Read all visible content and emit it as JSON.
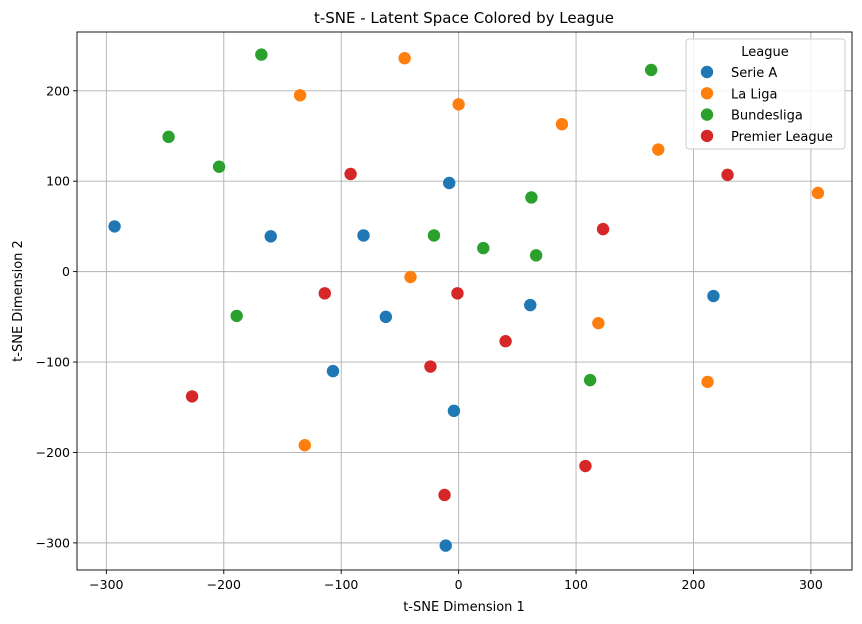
{
  "chart_data": {
    "type": "scatter",
    "title": "t-SNE - Latent Space Colored by League",
    "xlabel": "t-SNE Dimension 1",
    "ylabel": "t-SNE Dimension 2",
    "xlim": [
      -325,
      335
    ],
    "ylim": [
      -330,
      265
    ],
    "xticks": [
      -300,
      -200,
      -100,
      0,
      100,
      200,
      300
    ],
    "yticks": [
      -300,
      -200,
      -100,
      0,
      100,
      200
    ],
    "xtick_labels": [
      "−300",
      "−200",
      "−100",
      "0",
      "100",
      "200",
      "300"
    ],
    "ytick_labels": [
      "−300",
      "−200",
      "−100",
      "0",
      "100",
      "200"
    ],
    "grid": true,
    "legend": {
      "title": "League",
      "position": "upper right"
    },
    "series": [
      {
        "name": "Serie A",
        "color": "#1f77b4",
        "points": [
          {
            "x": -293,
            "y": 50
          },
          {
            "x": -160,
            "y": 39
          },
          {
            "x": -81,
            "y": 40
          },
          {
            "x": -8,
            "y": 98
          },
          {
            "x": -62,
            "y": -50
          },
          {
            "x": -107,
            "y": -110
          },
          {
            "x": 61,
            "y": -37
          },
          {
            "x": 217,
            "y": -27
          },
          {
            "x": -4,
            "y": -154
          },
          {
            "x": -11,
            "y": -303
          }
        ]
      },
      {
        "name": "La Liga",
        "color": "#ff7f0e",
        "points": [
          {
            "x": -135,
            "y": 195
          },
          {
            "x": -46,
            "y": 236
          },
          {
            "x": 0,
            "y": 185
          },
          {
            "x": 88,
            "y": 163
          },
          {
            "x": 170,
            "y": 135
          },
          {
            "x": 306,
            "y": 87
          },
          {
            "x": -41,
            "y": -6
          },
          {
            "x": 119,
            "y": -57
          },
          {
            "x": 212,
            "y": -122
          },
          {
            "x": -131,
            "y": -192
          }
        ]
      },
      {
        "name": "Bundesliga",
        "color": "#2ca02c",
        "points": [
          {
            "x": -168,
            "y": 240
          },
          {
            "x": -247,
            "y": 149
          },
          {
            "x": -204,
            "y": 116
          },
          {
            "x": 164,
            "y": 223
          },
          {
            "x": 62,
            "y": 82
          },
          {
            "x": -21,
            "y": 40
          },
          {
            "x": 21,
            "y": 26
          },
          {
            "x": 66,
            "y": 18
          },
          {
            "x": -189,
            "y": -49
          },
          {
            "x": 112,
            "y": -120
          }
        ]
      },
      {
        "name": "Premier League",
        "color": "#d62728",
        "points": [
          {
            "x": -92,
            "y": 108
          },
          {
            "x": 229,
            "y": 107
          },
          {
            "x": 123,
            "y": 47
          },
          {
            "x": -114,
            "y": -24
          },
          {
            "x": -1,
            "y": -24
          },
          {
            "x": 40,
            "y": -77
          },
          {
            "x": -24,
            "y": -105
          },
          {
            "x": -227,
            "y": -138
          },
          {
            "x": 108,
            "y": -215
          },
          {
            "x": -12,
            "y": -247
          }
        ]
      }
    ]
  }
}
